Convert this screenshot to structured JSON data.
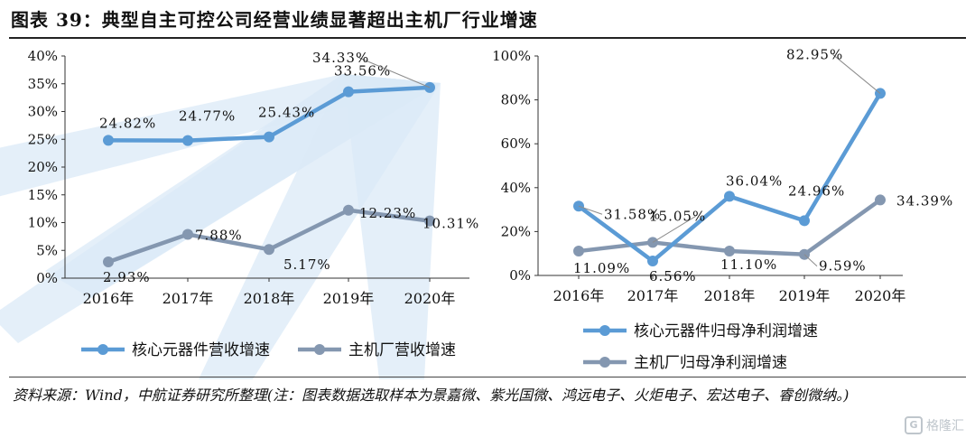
{
  "figure": {
    "title": "图表 39：典型自主可控公司经营业绩显著超出主机厂行业增速",
    "source": "资料来源：Wind，中航证券研究所整理(注：图表数据选取样本为景嘉微、紫光国微、鸿远电子、火炬电子、宏达电子、睿创微纳。)",
    "watermark": "格隆汇",
    "watermark_logo": "G"
  },
  "colors": {
    "blue": "#5b9bd5",
    "gray": "#8497b0",
    "background_rays": "#dbeaf7"
  },
  "chart_data": [
    {
      "type": "line",
      "categories": [
        "2016年",
        "2017年",
        "2018年",
        "2019年",
        "2020年"
      ],
      "ylim": [
        0,
        40
      ],
      "yticks": [
        "0%",
        "5%",
        "10%",
        "15%",
        "20%",
        "25%",
        "30%",
        "35%",
        "40%"
      ],
      "grid": false,
      "legend_position": "bottom",
      "series": [
        {
          "name": "核心元器件营收增速",
          "values": [
            24.82,
            24.77,
            25.43,
            33.56,
            34.33
          ],
          "labels": [
            "24.82%",
            "24.77%",
            "25.43%",
            "33.56%",
            "34.33%"
          ]
        },
        {
          "name": "主机厂营收增速",
          "values": [
            2.93,
            7.88,
            5.17,
            12.23,
            10.31
          ],
          "labels": [
            "2.93%",
            "7.88%",
            "5.17%",
            "12.23%",
            "10.31%"
          ]
        }
      ]
    },
    {
      "type": "line",
      "categories": [
        "2016年",
        "2017年",
        "2018年",
        "2019年",
        "2020年"
      ],
      "ylim": [
        0,
        100
      ],
      "yticks": [
        "0%",
        "20%",
        "40%",
        "60%",
        "80%",
        "100%"
      ],
      "grid": false,
      "legend_position": "bottom",
      "series": [
        {
          "name": "核心元器件归母净利润增速",
          "values": [
            31.58,
            6.56,
            36.04,
            24.96,
            82.95
          ],
          "labels": [
            "31.58%",
            "6.56%",
            "36.04%",
            "24.96%",
            "82.95%"
          ]
        },
        {
          "name": "主机厂归母净利润增速",
          "values": [
            11.09,
            15.05,
            11.1,
            9.59,
            34.39
          ],
          "labels": [
            "11.09%",
            "15.05%",
            "11.10%",
            "9.59%",
            "34.39%"
          ]
        }
      ]
    }
  ]
}
